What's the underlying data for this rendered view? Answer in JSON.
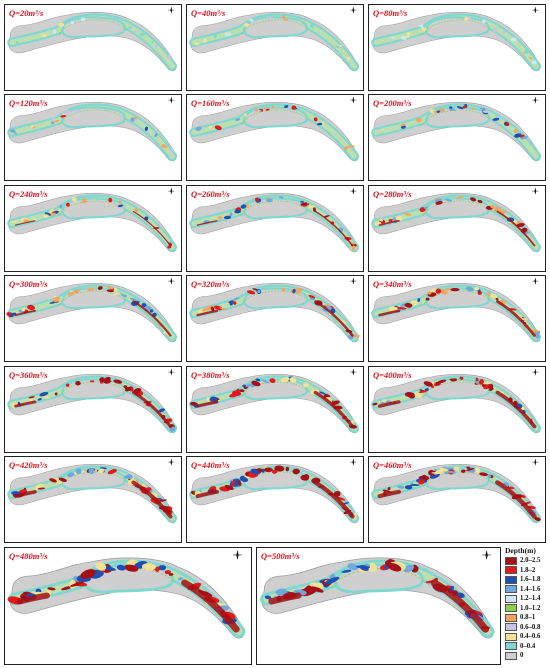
{
  "panels": [
    {
      "label": "Q=20m³/s",
      "level": 0
    },
    {
      "label": "Q=40m³/s",
      "level": 1
    },
    {
      "label": "Q=80m³/s",
      "level": 2
    },
    {
      "label": "Q=120m³/s",
      "level": 3
    },
    {
      "label": "Q=160m³/s",
      "level": 4
    },
    {
      "label": "Q=200m³/s",
      "level": 5
    },
    {
      "label": "Q=240m³/s",
      "level": 6
    },
    {
      "label": "Q=260m³/s",
      "level": 7
    },
    {
      "label": "Q=280m³/s",
      "level": 8
    },
    {
      "label": "Q=300m³/s",
      "level": 9
    },
    {
      "label": "Q=320m³/s",
      "level": 10
    },
    {
      "label": "Q=340m³/s",
      "level": 11
    },
    {
      "label": "Q=360m³/s",
      "level": 12
    },
    {
      "label": "Q=380m³/s",
      "level": 13
    },
    {
      "label": "Q=400m³/s",
      "level": 14
    },
    {
      "label": "Q=420m³/s",
      "level": 15
    },
    {
      "label": "Q=440m³/s",
      "level": 16
    },
    {
      "label": "Q=460m³/s",
      "level": 17
    },
    {
      "label": "Q=480m³/s",
      "level": 18
    },
    {
      "label": "Q=500m³/s",
      "level": 19
    }
  ],
  "legend": {
    "title": "Depth(m)",
    "items": [
      {
        "label": "2.0–2.5",
        "color": "#a50f15"
      },
      {
        "label": "1.8–2",
        "color": "#e3191c"
      },
      {
        "label": "1.6–1.8",
        "color": "#1f4fb4"
      },
      {
        "label": "1.4–1.6",
        "color": "#6fa8dc"
      },
      {
        "label": "1.2–1.4",
        "color": "#cfe7f5"
      },
      {
        "label": "1.0–1.2",
        "color": "#8fd14f"
      },
      {
        "label": "0.8–1",
        "color": "#f4a460"
      },
      {
        "label": "0.6–0.8",
        "color": "#c6c3e6"
      },
      {
        "label": "0.4–0.6",
        "color": "#f2e394"
      },
      {
        "label": "0–0.4",
        "color": "#7fd8d0"
      },
      {
        "label": "0",
        "color": "#cfcfcf"
      }
    ]
  }
}
